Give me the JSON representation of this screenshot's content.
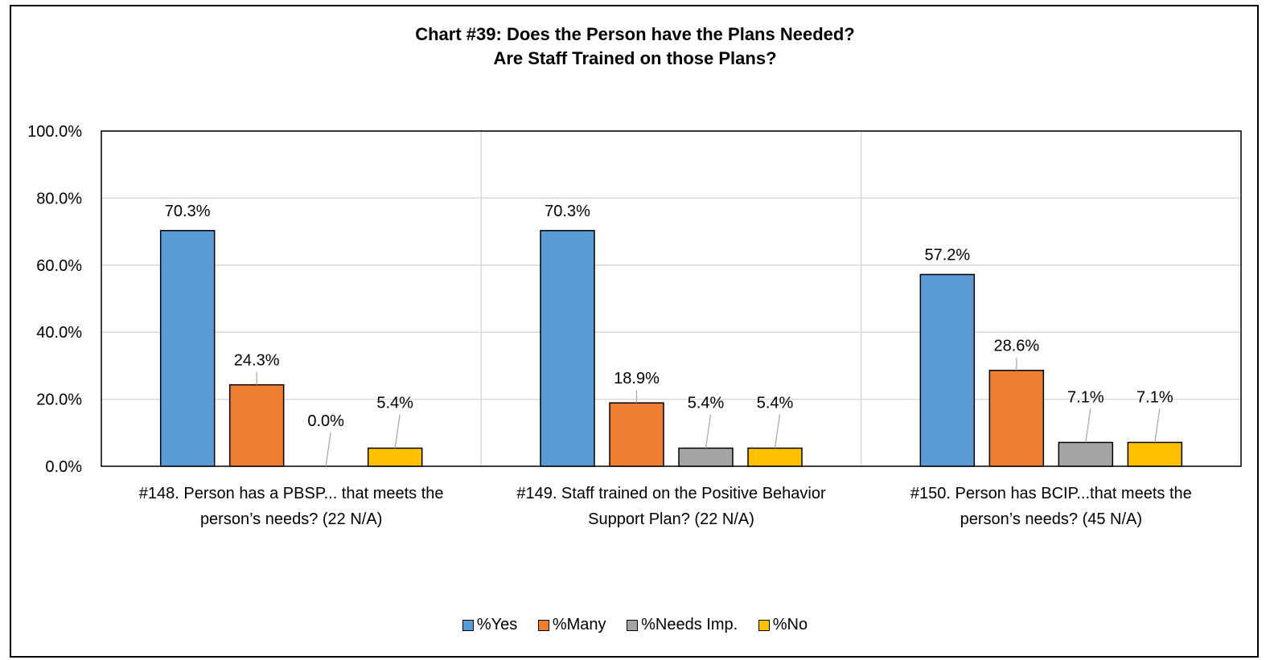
{
  "chart_data": {
    "type": "bar",
    "title_lines": [
      "Chart #39: Does the Person have the Plans Needed?",
      "Are Staff Trained on those Plans?"
    ],
    "categories": [
      [
        "#148. Person has a PBSP... that meets the",
        "person’s needs? (22 N/A)"
      ],
      [
        "#149. Staff trained on the Positive Behavior",
        "Support Plan? (22 N/A)"
      ],
      [
        "#150. Person has BCIP...that meets the",
        "person’s needs? (45 N/A)"
      ]
    ],
    "series": [
      {
        "name": "%Yes",
        "color": "#5B9BD5",
        "values": [
          70.3,
          70.3,
          57.2
        ],
        "labels": [
          "70.3%",
          "70.3%",
          "57.2%"
        ]
      },
      {
        "name": "%Many",
        "color": "#ED7D31",
        "values": [
          24.3,
          18.9,
          28.6
        ],
        "labels": [
          "24.3%",
          "18.9%",
          "28.6%"
        ]
      },
      {
        "name": "%Needs Imp.",
        "color": "#A5A5A5",
        "values": [
          0.0,
          5.4,
          7.1
        ],
        "labels": [
          "0.0%",
          "5.4%",
          "7.1%"
        ]
      },
      {
        "name": "%No",
        "color": "#FFC000",
        "values": [
          5.4,
          5.4,
          7.1
        ],
        "labels": [
          "5.4%",
          "5.4%",
          "7.1%"
        ]
      }
    ],
    "ylim": [
      0,
      100
    ],
    "yticks": [
      "0.0%",
      "20.0%",
      "40.0%",
      "60.0%",
      "80.0%",
      "100.0%"
    ],
    "grid": true,
    "legend_position": "bottom"
  }
}
